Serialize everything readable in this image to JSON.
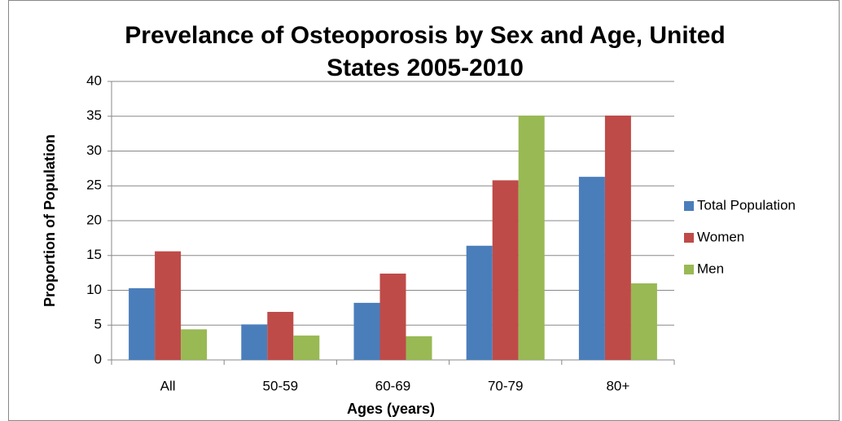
{
  "chart_data": {
    "type": "bar",
    "title": [
      "Prevelance of Osteoporosis by Sex and Age, United",
      "States 2005-2010"
    ],
    "x_label": "Ages (years)",
    "y_label": "Proportion of Population",
    "categories": [
      "All",
      "50-59",
      "60-69",
      "70-79",
      "80+"
    ],
    "series": [
      {
        "name": "Total Population",
        "color": "#4a7ebb",
        "values": [
          10.3,
          5.1,
          8.2,
          16.4,
          26.3
        ]
      },
      {
        "name": "Women",
        "color": "#be4b48",
        "values": [
          15.6,
          6.9,
          12.4,
          25.8,
          35.1
        ]
      },
      {
        "name": "Men",
        "color": "#98b954",
        "values": [
          4.4,
          3.5,
          3.4,
          35.1,
          11.0
        ]
      }
    ],
    "ylim": [
      0,
      40
    ],
    "yticks": [
      0,
      5,
      10,
      15,
      20,
      25,
      30,
      35,
      40
    ],
    "grid": true,
    "legend": "right"
  }
}
